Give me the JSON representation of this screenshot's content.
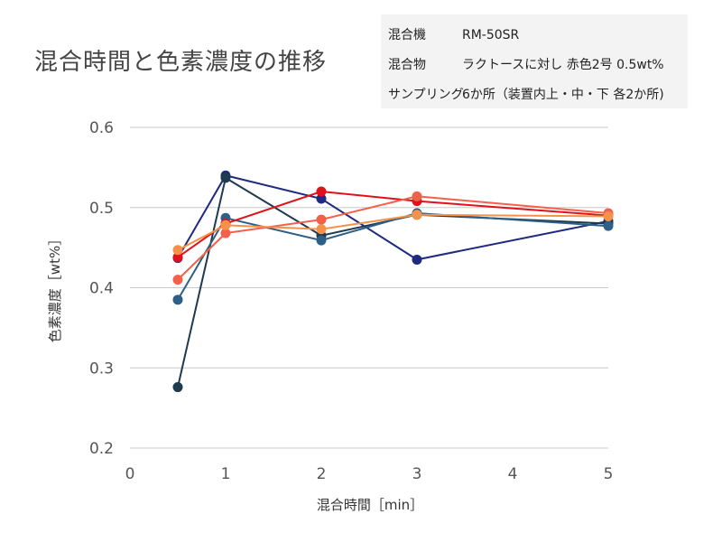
{
  "chart_data": {
    "type": "line",
    "title": "混合時間と色素濃度の推移",
    "xlabel": "混合時間［min］",
    "ylabel": "色素濃度［wt%］",
    "xlim": [
      0,
      5
    ],
    "ylim": [
      0.2,
      0.6
    ],
    "xticks": [
      "0",
      "1",
      "2",
      "3",
      "4",
      "5"
    ],
    "yticks": [
      "0.2",
      "0.3",
      "0.4",
      "0.5",
      "0.6"
    ],
    "grid": "horizontal",
    "x": [
      0.5,
      1,
      2,
      3,
      5
    ],
    "series": [
      {
        "color": "#1f2a80",
        "values": [
          0.437,
          0.54,
          0.511,
          0.435,
          0.483
        ]
      },
      {
        "color": "#1e3a4f",
        "values": [
          0.276,
          0.537,
          0.465,
          0.491,
          0.48
        ]
      },
      {
        "color": "#2e5f86",
        "values": [
          0.385,
          0.487,
          0.459,
          0.493,
          0.477
        ]
      },
      {
        "color": "#e0111b",
        "values": [
          0.438,
          0.48,
          0.52,
          0.508,
          0.49
        ]
      },
      {
        "color": "#f4604a",
        "values": [
          0.41,
          0.468,
          0.485,
          0.514,
          0.493
        ]
      },
      {
        "color": "#f5924a",
        "values": [
          0.447,
          0.478,
          0.473,
          0.491,
          0.489
        ]
      }
    ]
  },
  "info": {
    "rows": [
      {
        "key": "混合機",
        "value": "RM-50SR"
      },
      {
        "key": "混合物",
        "value": "ラクトースに対し 赤色2号 0.5wt%"
      },
      {
        "key": "サンプリング",
        "value": "6か所（装置内上・中・下 各2か所)"
      }
    ]
  },
  "colors": {
    "grid": "#c8c8c8",
    "info_bg": "#f3f3f3"
  }
}
